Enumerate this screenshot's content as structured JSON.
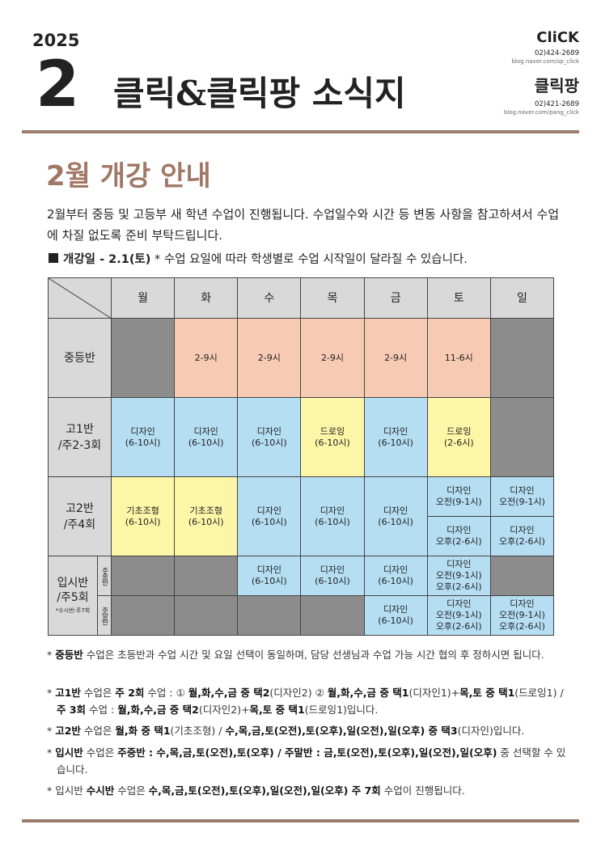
{
  "header": {
    "year": "2025",
    "month": "2",
    "title": "클릭&클릭팡 소식지",
    "brands": [
      {
        "name": "CliCK",
        "phone": "02)424-2689",
        "blog": "blog.naver.com/sp_click"
      },
      {
        "name": "클릭팡",
        "phone": "02)421-2689",
        "blog": "blog.naver.com/pang_click"
      }
    ]
  },
  "section_title": "2월 개강 안내",
  "intro": "2월부터 중등 및 고등부 새 학년 수업이 진행됩니다. 수업일수와 시간 등 변동 사항을 참고하셔서 수업에 차질 없도록 준비 부탁드립니다.",
  "notice": {
    "bold": "개강일 - 2.1(토)",
    "text": "* 수업 요일에 따라 학생별로 수업 시작일이 달라질 수 있습니다."
  },
  "table": {
    "days": [
      "월",
      "화",
      "수",
      "목",
      "금",
      "토",
      "일"
    ],
    "rows": [
      {
        "label": "중등반",
        "cells": [
          {
            "color": "#8c8c8c"
          },
          {
            "text": "2-9시",
            "color": "#f7cbb3"
          },
          {
            "text": "2-9시",
            "color": "#f7cbb3"
          },
          {
            "text": "2-9시",
            "color": "#f7cbb3"
          },
          {
            "text": "2-9시",
            "color": "#f7cbb3"
          },
          {
            "text": "11-6시",
            "color": "#f7cbb3"
          },
          {
            "color": "#8c8c8c"
          }
        ]
      },
      {
        "label": "고1반\n/주2-3회",
        "cells": [
          {
            "text": "디자인\n(6-10시)",
            "color": "#b5def3"
          },
          {
            "text": "디자인\n(6-10시)",
            "color": "#b5def3"
          },
          {
            "text": "디자인\n(6-10시)",
            "color": "#b5def3"
          },
          {
            "text": "드로잉\n(6-10시)",
            "color": "#fdf6a7"
          },
          {
            "text": "디자인\n(6-10시)",
            "color": "#b5def3"
          },
          {
            "text": "드로잉\n(2-6시)",
            "color": "#fdf6a7"
          },
          {
            "color": "#8c8c8c"
          }
        ]
      },
      {
        "label": "고2반\n/주4회",
        "cells": [
          {
            "text": "기초조형\n(6-10시)",
            "color": "#fdf6a7"
          },
          {
            "text": "기초조형\n(6-10시)",
            "color": "#fdf6a7"
          },
          {
            "text": "디자인\n(6-10시)",
            "color": "#b5def3"
          },
          {
            "text": "디자인\n(6-10시)",
            "color": "#b5def3"
          },
          {
            "text": "디자인\n(6-10시)",
            "color": "#b5def3"
          },
          {
            "parts": [
              "디자인\n오전(9-1시)",
              "디자인\n오후(2-6시)"
            ],
            "color": "#b5def3"
          },
          {
            "parts": [
              "디자인\n오전(9-1시)",
              "디자인\n오후(2-6시)"
            ],
            "color": "#b5def3"
          }
        ]
      },
      {
        "label": "입시반\n/주5회",
        "note": "*수시반:주7회",
        "subrows": [
          {
            "label": "주중반",
            "cells": [
              {
                "color": "#8c8c8c"
              },
              {
                "color": "#8c8c8c"
              },
              {
                "text": "디자인\n(6-10시)",
                "color": "#b5def3"
              },
              {
                "text": "디자인\n(6-10시)",
                "color": "#b5def3"
              },
              {
                "text": "디자인\n(6-10시)",
                "color": "#b5def3"
              },
              {
                "text": "디자인\n오전(9-1시)\n오후(2-6시)",
                "color": "#b5def3"
              },
              {
                "color": "#8c8c8c"
              }
            ]
          },
          {
            "label": "주말반",
            "cells": [
              {
                "color": "#8c8c8c"
              },
              {
                "color": "#8c8c8c"
              },
              {
                "color": "#8c8c8c"
              },
              {
                "color": "#8c8c8c"
              },
              {
                "text": "디자인\n(6-10시)",
                "color": "#b5def3"
              },
              {
                "text": "디자인\n오전(9-1시)\n오후(2-6시)",
                "color": "#b5def3"
              },
              {
                "text": "디자인\n오전(9-1시)\n오후(2-6시)",
                "color": "#b5def3"
              }
            ]
          }
        ]
      }
    ]
  },
  "notes": [
    [
      "* ",
      "중등반",
      " 수업은 초등반과 수업 시간 및 요일 선택이 동일하며, 담당 선생님과 수업 가능 시간 협의 후 정하시면 됩니다."
    ],
    [
      "* ",
      "고1반",
      " 수업은 ",
      "주 2회",
      " 수업 : ① ",
      "월,화,수,금 중 택2",
      "(디자인2) ② ",
      "월,화,수,금 중 택1",
      "(디자인1)+",
      "목,토 중 택1",
      "(드로잉1) / ",
      "주 3회",
      " 수업 : ",
      "월,화,수,금 중 택2",
      "(디자인2)+",
      "목,토 중 택1",
      "(드로잉1)입니다."
    ],
    [
      "* ",
      "고2반",
      " 수업은 ",
      "월,화 중 택1",
      "(기초조형) / ",
      "수,목,금,토(오전),토(오후),일(오전),일(오후) 중 택3",
      "(디자인)입니다."
    ],
    [
      "* ",
      "입시반",
      " 수업은 ",
      "주중반 : 수,목,금,토(오전),토(오후) / 주말반 : 금,토(오전),토(오후),일(오전),일(오후)",
      " 중 선택할 수 있습니다."
    ],
    [
      "* 입시반 ",
      "수시반",
      " 수업은 ",
      "수,목,금,토(오전),토(오후),일(오전),일(오후) 주 7회",
      " 수업이 진행됩니다."
    ]
  ]
}
